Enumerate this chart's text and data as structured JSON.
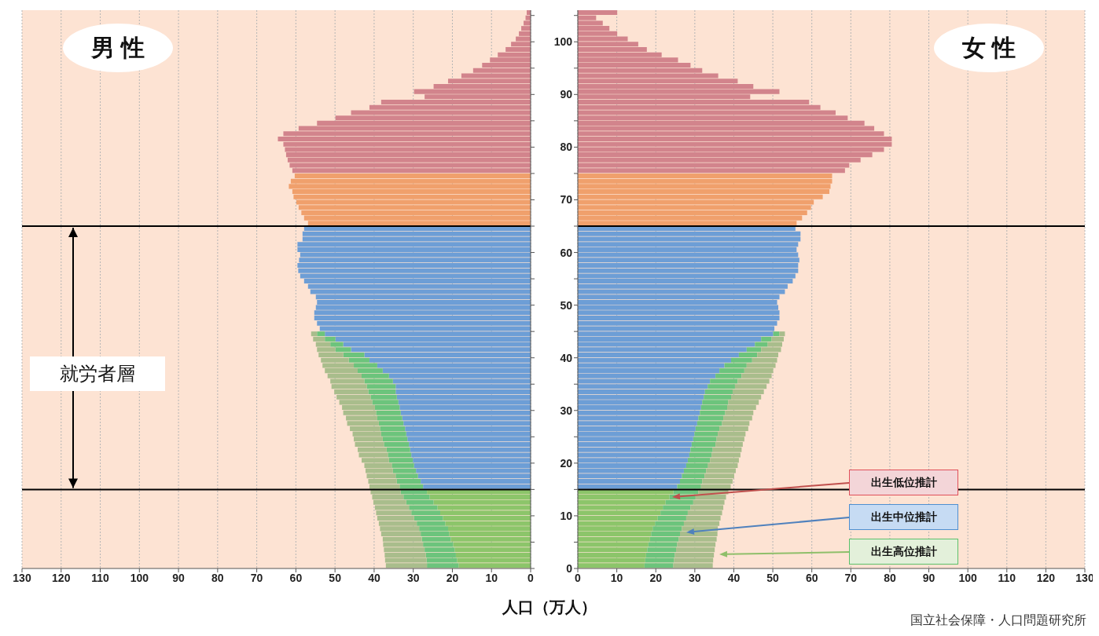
{
  "chart_data": [
    {
      "type": "bar",
      "orientation": "horizontal",
      "stacked": true,
      "title": "男 性",
      "xlabel": "人口（万人）",
      "grid": "x",
      "tick_labels": "x",
      "x": [
        0.5,
        1.5,
        2.5,
        3.5,
        4.5,
        5.5,
        6.5,
        7.5,
        8.5,
        9.5,
        10.5,
        11.5,
        12.5,
        13.5,
        14.5,
        15.5,
        16.5,
        17.5,
        18.5,
        19.5,
        20.5,
        21.5,
        22.5,
        23.5,
        24.5,
        25.5,
        26.5,
        27.5,
        28.5,
        29.5,
        30.5,
        31.5,
        32.5,
        33.5,
        34.5,
        35.5,
        36.5,
        37.5,
        38.5,
        39.5,
        40.5,
        41.5,
        42.5,
        43.5,
        44.5,
        45.5,
        46.5,
        47.5,
        48.5,
        49.5,
        50.5,
        51.5,
        52.5,
        53.5,
        54.5,
        55.5,
        56.5,
        57.5,
        58.5,
        59.5,
        60.5,
        61.5,
        62.5,
        63.5,
        64.5,
        65.5,
        66.5,
        67.5,
        68.5,
        69.5,
        70.5,
        71.5,
        72.5,
        73.5,
        74.5,
        75.5,
        76.5,
        77.5,
        78.5,
        79.5,
        80.5,
        81.5,
        82.5,
        83.5,
        84.5,
        85.5,
        86.5,
        87.5,
        88.5,
        89.5,
        90.5,
        91.5,
        92.5,
        93.5,
        94.5,
        95.5,
        96.5,
        97.5,
        98.5,
        99.5,
        100.5,
        101.5,
        102.5,
        103.5,
        104.5,
        105.5
      ],
      "xlim": [
        130,
        0
      ],
      "xticks": [
        130,
        120,
        110,
        100,
        90,
        80,
        70,
        60,
        50,
        40,
        30,
        20,
        10,
        0
      ],
      "ylim": [
        0,
        106
      ],
      "yticks": [
        0,
        {
          "value": 5,
          "label": null
        },
        10,
        {
          "value": 15,
          "label": null
        },
        20,
        {
          "value": 25,
          "label": null
        },
        30,
        {
          "value": 35,
          "label": null
        },
        40,
        {
          "value": 45,
          "label": null
        },
        50,
        {
          "value": 55,
          "label": null
        },
        60,
        {
          "value": 65,
          "label": null
        },
        70,
        {
          "value": 75,
          "label": null
        },
        80,
        {
          "value": 85,
          "label": null
        },
        90,
        {
          "value": 95,
          "label": null
        },
        100,
        {
          "value": 105,
          "label": null
        }
      ],
      "series": [
        {
          "values": [
            18.4,
            18.8,
            19.1,
            19.4,
            19.8,
            20.4,
            20.8,
            21.1,
            21.8,
            22.4,
            23.1,
            23.8,
            24.8,
            25.8,
            26.5,
            27.5,
            28.1,
            28.8,
            29.3,
            29.8,
            30.1,
            30.5,
            30.8,
            31.1,
            31.5,
            31.8,
            32.1,
            32.5,
            32.8,
            33.2,
            33.5,
            33.8,
            34.2,
            34.5,
            34.5,
            35.2,
            36.2,
            37.8,
            39.2,
            41.2,
            42.5,
            45.9,
            47.9,
            49.9,
            52.6,
            53.9,
            54.6,
            55.3,
            55.3,
            54.9,
            54.6,
            54.9,
            56.3,
            56.9,
            57.9,
            58.9,
            59.4,
            59.6,
            59.2,
            58.9,
            59.6,
            59.6,
            58.3,
            58.3,
            57.9,
            56.9,
            57.9,
            58.6,
            59.3,
            59.9,
            60.6,
            60.9,
            61.8,
            61.3,
            60.3,
            60.9,
            61.6,
            62.1,
            62.5,
            62.8,
            63.2,
            64.6,
            63.2,
            59.3,
            54.6,
            49.9,
            45.9,
            41.2,
            38.2,
            27.1,
            29.8,
            24.8,
            21.1,
            17.7,
            14.7,
            12.4,
            10.4,
            8.4,
            6.4,
            5.0,
            3.8,
            3.0,
            2.4,
            1.8,
            1.3,
            1.0
          ],
          "colors": [
            "#8cc56a",
            "#8cc56a",
            "#8cc56a",
            "#8cc56a",
            "#8cc56a",
            "#8cc56a",
            "#8cc56a",
            "#8cc56a",
            "#8cc56a",
            "#8cc56a",
            "#8cc56a",
            "#8cc56a",
            "#8cc56a",
            "#8cc56a",
            "#8cc56a",
            "#6d9ed6",
            "#6d9ed6",
            "#6d9ed6",
            "#6d9ed6",
            "#6d9ed6",
            "#6d9ed6",
            "#6d9ed6",
            "#6d9ed6",
            "#6d9ed6",
            "#6d9ed6",
            "#6d9ed6",
            "#6d9ed6",
            "#6d9ed6",
            "#6d9ed6",
            "#6d9ed6",
            "#6d9ed6",
            "#6d9ed6",
            "#6d9ed6",
            "#6d9ed6",
            "#6d9ed6",
            "#6d9ed6",
            "#6d9ed6",
            "#6d9ed6",
            "#6d9ed6",
            "#6d9ed6",
            "#6d9ed6",
            "#6d9ed6",
            "#6d9ed6",
            "#6d9ed6",
            "#6d9ed6",
            "#6d9ed6",
            "#6d9ed6",
            "#6d9ed6",
            "#6d9ed6",
            "#6d9ed6",
            "#6d9ed6",
            "#6d9ed6",
            "#6d9ed6",
            "#6d9ed6",
            "#6d9ed6",
            "#6d9ed6",
            "#6d9ed6",
            "#6d9ed6",
            "#6d9ed6",
            "#6d9ed6",
            "#6d9ed6",
            "#6d9ed6",
            "#6d9ed6",
            "#6d9ed6",
            "#6d9ed6",
            "#f0a06c",
            "#f0a06c",
            "#f0a06c",
            "#f0a06c",
            "#f0a06c",
            "#f0a06c",
            "#f0a06c",
            "#f0a06c",
            "#f0a06c",
            "#f0a06c",
            "#d2848c",
            "#d2848c",
            "#d2848c",
            "#d2848c",
            "#d2848c",
            "#d2848c",
            "#d2848c",
            "#d2848c",
            "#d2848c",
            "#d2848c",
            "#d2848c",
            "#d2848c",
            "#d2848c",
            "#d2848c",
            "#d2848c",
            "#d2848c",
            "#d2848c",
            "#d2848c",
            "#d2848c",
            "#d2848c",
            "#d2848c",
            "#d2848c",
            "#d2848c",
            "#d2848c",
            "#d2848c",
            "#d2848c",
            "#d2848c",
            "#d2848c",
            "#d2848c",
            "#d2848c",
            "#d2848c"
          ]
        },
        {
          "color": "#6cc47c",
          "x": [
            0.5,
            1.5,
            2.5,
            3.5,
            4.5,
            5.5,
            6.5,
            7.5,
            8.5,
            9.5,
            10.5,
            11.5,
            12.5,
            13.5,
            14.5,
            15.5,
            16.5,
            17.5,
            18.5,
            19.5,
            20.5,
            21.5,
            22.5,
            23.5,
            24.5,
            25.5,
            26.5,
            27.5,
            28.5,
            29.5,
            30.5,
            31.5,
            32.5,
            33.5,
            34.5,
            35.5,
            36.5,
            37.5,
            38.5,
            39.5,
            40.5,
            41.5,
            42.5,
            43.5,
            44.5
          ],
          "values": [
            8.1,
            7.8,
            7.7,
            7.7,
            7.7,
            7.4,
            7.3,
            7.4,
            7.3,
            7.4,
            7.4,
            7.3,
            7.0,
            6.7,
            6.7,
            6.0,
            6.1,
            5.7,
            5.9,
            5.7,
            6.1,
            6.0,
            6.0,
            6.4,
            6.3,
            6.4,
            6.4,
            6.3,
            6.4,
            6.3,
            6.3,
            6.7,
            6.7,
            7.0,
            7.4,
            7.3,
            7.0,
            6.4,
            6.0,
            5.3,
            5.4,
            4.0,
            3.3,
            2.7,
            2.0
          ]
        },
        {
          "color": "#a9bd8c",
          "x": [
            0.5,
            1.5,
            2.5,
            3.5,
            4.5,
            5.5,
            6.5,
            7.5,
            8.5,
            9.5,
            10.5,
            11.5,
            12.5,
            13.5,
            14.5,
            15.5,
            16.5,
            17.5,
            18.5,
            19.5,
            20.5,
            21.5,
            22.5,
            23.5,
            24.5,
            25.5,
            26.5,
            27.5,
            28.5,
            29.5,
            30.5,
            31.5,
            32.5,
            33.5,
            34.5,
            35.5,
            36.5,
            37.5,
            38.5,
            39.5,
            40.5,
            41.5,
            42.5,
            43.5,
            44.5
          ],
          "values": [
            10.5,
            10.6,
            10.5,
            10.4,
            10.2,
            10.0,
            10.1,
            10.0,
            9.7,
            9.4,
            9.0,
            8.7,
            8.4,
            8.0,
            7.7,
            7.7,
            7.3,
            7.4,
            7.0,
            7.0,
            7.0,
            7.4,
            7.4,
            7.4,
            7.4,
            7.3,
            7.7,
            8.1,
            8.0,
            8.4,
            8.4,
            8.4,
            8.7,
            8.7,
            9.0,
            8.7,
            8.7,
            8.4,
            8.0,
            7.1,
            6.3,
            4.7,
            3.7,
            3.0,
            1.5
          ]
        }
      ],
      "ref_lines": [
        {
          "axis": "y",
          "value": 65,
          "color": "#000000"
        },
        {
          "axis": "y",
          "value": 15,
          "color": "#000000"
        }
      ],
      "annotations": [
        "就労者層"
      ]
    },
    {
      "type": "bar",
      "orientation": "horizontal",
      "stacked": true,
      "title": "女 性",
      "grid": "x",
      "x": [
        0.5,
        1.5,
        2.5,
        3.5,
        4.5,
        5.5,
        6.5,
        7.5,
        8.5,
        9.5,
        10.5,
        11.5,
        12.5,
        13.5,
        14.5,
        15.5,
        16.5,
        17.5,
        18.5,
        19.5,
        20.5,
        21.5,
        22.5,
        23.5,
        24.5,
        25.5,
        26.5,
        27.5,
        28.5,
        29.5,
        30.5,
        31.5,
        32.5,
        33.5,
        34.5,
        35.5,
        36.5,
        37.5,
        38.5,
        39.5,
        40.5,
        41.5,
        42.5,
        43.5,
        44.5,
        45.5,
        46.5,
        47.5,
        48.5,
        49.5,
        50.5,
        51.5,
        52.5,
        53.5,
        54.5,
        55.5,
        56.5,
        57.5,
        58.5,
        59.5,
        60.5,
        61.5,
        62.5,
        63.5,
        64.5,
        65.5,
        66.5,
        67.5,
        68.5,
        69.5,
        70.5,
        71.5,
        72.5,
        73.5,
        74.5,
        75.5,
        76.5,
        77.5,
        78.5,
        79.5,
        80.5,
        81.5,
        82.5,
        83.5,
        84.5,
        85.5,
        86.5,
        87.5,
        88.5,
        89.5,
        90.5,
        91.5,
        92.5,
        93.5,
        94.5,
        95.5,
        96.5,
        97.5,
        98.5,
        99.5,
        100.5,
        101.5,
        102.5,
        103.5,
        104.5,
        105.5
      ],
      "xlim": [
        0,
        130
      ],
      "xticks": [
        0,
        10,
        20,
        30,
        40,
        50,
        60,
        70,
        80,
        90,
        100,
        110,
        120,
        130
      ],
      "ylim": [
        0,
        106
      ],
      "yticks": [
        0,
        {
          "value": 5,
          "label": null
        },
        10,
        {
          "value": 15,
          "label": null
        },
        20,
        {
          "value": 25,
          "label": null
        },
        30,
        {
          "value": 35,
          "label": null
        },
        40,
        {
          "value": 45,
          "label": null
        },
        50,
        {
          "value": 55,
          "label": null
        },
        60,
        {
          "value": 65,
          "label": null
        },
        70,
        {
          "value": 75,
          "label": null
        },
        80,
        {
          "value": 85,
          "label": null
        },
        90,
        {
          "value": 95,
          "label": null
        },
        100,
        {
          "value": 105,
          "label": null
        }
      ],
      "series": [
        {
          "values": [
            17.1,
            17.3,
            17.5,
            17.8,
            18.1,
            18.5,
            18.8,
            19.2,
            19.8,
            20.5,
            21.2,
            21.8,
            22.5,
            23.5,
            24.5,
            25.5,
            26.2,
            26.7,
            27.2,
            27.8,
            28.2,
            28.6,
            28.9,
            29.2,
            29.6,
            29.9,
            30.2,
            30.6,
            30.9,
            31.3,
            31.6,
            31.9,
            32.3,
            32.6,
            33.3,
            33.9,
            35.3,
            36.3,
            37.6,
            39.3,
            41.3,
            43.3,
            45.4,
            47.0,
            50.1,
            50.4,
            51.1,
            51.7,
            51.7,
            51.4,
            51.1,
            51.7,
            53.1,
            53.8,
            55.1,
            55.8,
            56.5,
            56.5,
            56.8,
            56.5,
            56.1,
            56.5,
            57.1,
            57.1,
            55.8,
            56.1,
            57.5,
            58.8,
            59.8,
            60.5,
            62.8,
            64.5,
            64.8,
            65.2,
            65.2,
            68.5,
            69.6,
            72.5,
            75.5,
            78.5,
            80.5,
            80.5,
            78.5,
            76.0,
            73.5,
            69.2,
            66.1,
            62.2,
            59.3,
            44.2,
            51.7,
            45.0,
            41.0,
            36.0,
            31.9,
            28.9,
            25.7,
            21.5,
            17.7,
            15.5,
            12.8,
            10.1,
            8.1,
            6.4,
            4.7,
            10.1
          ],
          "colors": [
            "#8cc56a",
            "#8cc56a",
            "#8cc56a",
            "#8cc56a",
            "#8cc56a",
            "#8cc56a",
            "#8cc56a",
            "#8cc56a",
            "#8cc56a",
            "#8cc56a",
            "#8cc56a",
            "#8cc56a",
            "#8cc56a",
            "#8cc56a",
            "#8cc56a",
            "#6d9ed6",
            "#6d9ed6",
            "#6d9ed6",
            "#6d9ed6",
            "#6d9ed6",
            "#6d9ed6",
            "#6d9ed6",
            "#6d9ed6",
            "#6d9ed6",
            "#6d9ed6",
            "#6d9ed6",
            "#6d9ed6",
            "#6d9ed6",
            "#6d9ed6",
            "#6d9ed6",
            "#6d9ed6",
            "#6d9ed6",
            "#6d9ed6",
            "#6d9ed6",
            "#6d9ed6",
            "#6d9ed6",
            "#6d9ed6",
            "#6d9ed6",
            "#6d9ed6",
            "#6d9ed6",
            "#6d9ed6",
            "#6d9ed6",
            "#6d9ed6",
            "#6d9ed6",
            "#6d9ed6",
            "#6d9ed6",
            "#6d9ed6",
            "#6d9ed6",
            "#6d9ed6",
            "#6d9ed6",
            "#6d9ed6",
            "#6d9ed6",
            "#6d9ed6",
            "#6d9ed6",
            "#6d9ed6",
            "#6d9ed6",
            "#6d9ed6",
            "#6d9ed6",
            "#6d9ed6",
            "#6d9ed6",
            "#6d9ed6",
            "#6d9ed6",
            "#6d9ed6",
            "#6d9ed6",
            "#6d9ed6",
            "#f0a06c",
            "#f0a06c",
            "#f0a06c",
            "#f0a06c",
            "#f0a06c",
            "#f0a06c",
            "#f0a06c",
            "#f0a06c",
            "#f0a06c",
            "#f0a06c",
            "#d2848c",
            "#d2848c",
            "#d2848c",
            "#d2848c",
            "#d2848c",
            "#d2848c",
            "#d2848c",
            "#d2848c",
            "#d2848c",
            "#d2848c",
            "#d2848c",
            "#d2848c",
            "#d2848c",
            "#d2848c",
            "#d2848c",
            "#d2848c",
            "#d2848c",
            "#d2848c",
            "#d2848c",
            "#d2848c",
            "#d2848c",
            "#d2848c",
            "#d2848c",
            "#d2848c",
            "#d2848c",
            "#d2848c",
            "#d2848c",
            "#d2848c",
            "#d2848c",
            "#d2848c",
            "#d2848c"
          ]
        },
        {
          "color": "#6cc47c",
          "x": [
            0.5,
            1.5,
            2.5,
            3.5,
            4.5,
            5.5,
            6.5,
            7.5,
            8.5,
            9.5,
            10.5,
            11.5,
            12.5,
            13.5,
            14.5,
            15.5,
            16.5,
            17.5,
            18.5,
            19.5,
            20.5,
            21.5,
            22.5,
            23.5,
            24.5,
            25.5,
            26.5,
            27.5,
            28.5,
            29.5,
            30.5,
            31.5,
            32.5,
            33.5,
            34.5,
            35.5,
            36.5,
            37.5,
            38.5,
            39.5,
            40.5,
            41.5,
            42.5,
            43.5,
            44.5
          ],
          "values": [
            7.4,
            7.4,
            7.4,
            7.4,
            7.4,
            7.4,
            7.4,
            7.5,
            7.4,
            7.3,
            7.0,
            7.1,
            7.1,
            6.7,
            6.4,
            6.1,
            5.7,
            5.8,
            5.7,
            5.6,
            5.7,
            5.7,
            5.7,
            6.1,
            6.0,
            6.0,
            6.1,
            6.4,
            6.4,
            6.5,
            6.7,
            6.7,
            7.0,
            7.1,
            7.0,
            7.1,
            6.7,
            6.4,
            5.7,
            5.4,
            4.7,
            3.7,
            3.3,
            2.7,
            1.6
          ]
        },
        {
          "color": "#a9bd8c",
          "x": [
            0.5,
            1.5,
            2.5,
            3.5,
            4.5,
            5.5,
            6.5,
            7.5,
            8.5,
            9.5,
            10.5,
            11.5,
            12.5,
            13.5,
            14.5,
            15.5,
            16.5,
            17.5,
            18.5,
            19.5,
            20.5,
            21.5,
            22.5,
            23.5,
            24.5,
            25.5,
            26.5,
            27.5,
            28.5,
            29.5,
            30.5,
            31.5,
            32.5,
            33.5,
            34.5,
            35.5,
            36.5,
            37.5,
            38.5,
            39.5,
            40.5,
            41.5,
            42.5,
            43.5,
            44.5
          ],
          "values": [
            10.1,
            10.0,
            10.0,
            9.9,
            9.8,
            9.7,
            9.6,
            9.2,
            9.1,
            8.8,
            8.8,
            8.4,
            8.0,
            7.8,
            7.7,
            7.6,
            7.8,
            7.6,
            7.6,
            7.6,
            7.4,
            7.4,
            7.4,
            7.0,
            7.1,
            7.1,
            7.4,
            7.0,
            7.4,
            7.2,
            7.4,
            7.8,
            7.7,
            8.0,
            8.1,
            8.1,
            7.7,
            7.4,
            7.4,
            6.4,
            5.4,
            5.1,
            3.7,
            3.1,
            1.4
          ]
        }
      ],
      "ref_lines": [
        {
          "axis": "y",
          "value": 65,
          "color": "#000000"
        },
        {
          "axis": "y",
          "value": 15,
          "color": "#000000"
        }
      ],
      "annotations": [
        "出生低位推計",
        "出生中位推計",
        "出生高位推計",
        "国立社会保障・人口問題研究所"
      ]
    }
  ]
}
